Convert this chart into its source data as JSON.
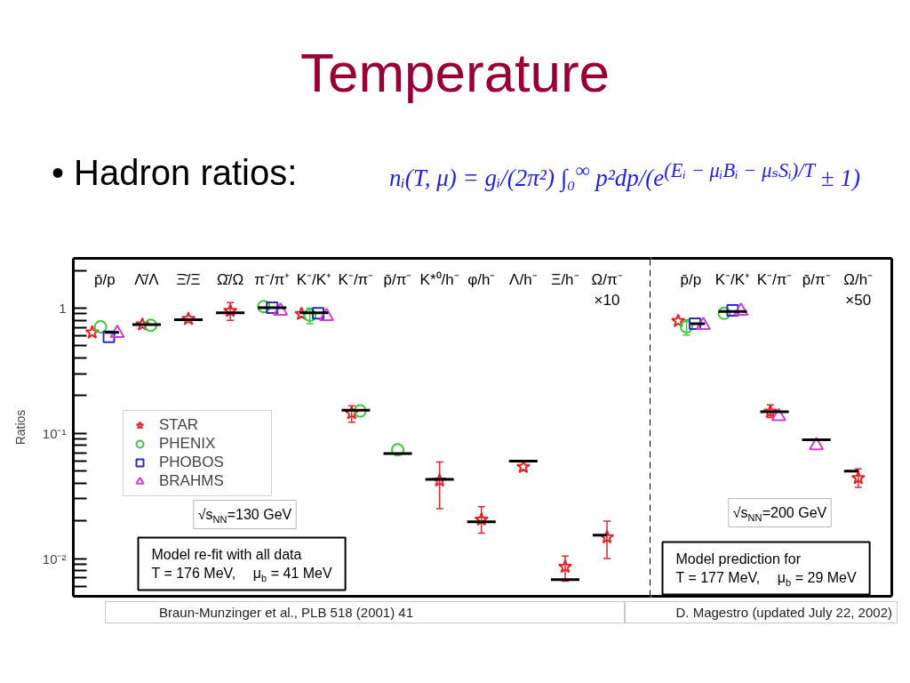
{
  "chart_data": [
    {
      "type": "scatter",
      "title": "Temperature",
      "subtitle": "• Hadron ratios:",
      "ylabel": "Ratios",
      "annotations": [
        "nᵢ(T, μ) = gᵢ/(2π²) ∫₀$^{∞}$ p²dp/(e$^{(Eᵢ − μᵢBᵢ − μₛSᵢ)/T}$ ± 1)",
        "√s$_{NN}$=130 GeV",
        "Model re-fit with all data\nT = 176 MeV,    μ$_{b}$ = 41 MeV",
        "Braun-Munzinger et al., PLB 518 (2001) 41"
      ],
      "categories": [
        "p̄/p",
        "Λ̄/Λ",
        "Ξ̄/Ξ",
        "Ω̄/Ω",
        "π⁻/π⁺",
        "K⁻/K⁺",
        "K⁻/π⁻",
        "p̄/π⁻",
        "K*⁰/h⁻",
        "φ/h⁻",
        "Λ/h⁻",
        "Ξ/h⁻",
        "Ω/π⁻\n×10"
      ],
      "series": [
        {
          "name": "STAR",
          "color": "#e3242b",
          "marker": "star",
          "values": [
            0.64,
            0.74,
            0.82,
            0.95,
            null,
            0.9,
            0.145,
            null,
            0.042,
            0.0205,
            0.054,
            0.0086,
            0.0148
          ],
          "errors": [
            null,
            null,
            null,
            [
              0.8,
              1.11
            ],
            null,
            null,
            [
              0.123,
              0.166
            ],
            null,
            [
              0.025,
              0.059
            ],
            [
              0.016,
              0.026
            ],
            null,
            [
              0.0066,
              0.0105
            ],
            [
              0.01,
              0.0199
            ]
          ]
        },
        {
          "name": "PHENIX",
          "color": "#3cc83c",
          "marker": "circle",
          "values": [
            0.71,
            0.73,
            null,
            null,
            1.03,
            0.88,
            0.151,
            0.074,
            null,
            null,
            null,
            null,
            null
          ],
          "errors": [
            null,
            null,
            null,
            null,
            null,
            [
              0.75,
              1.0
            ],
            null,
            null,
            null,
            null,
            null,
            null,
            null
          ]
        },
        {
          "name": "PHOBOS",
          "color": "#2a2ad0",
          "marker": "square",
          "values": [
            0.59,
            null,
            null,
            null,
            1.01,
            0.91,
            null,
            null,
            null,
            null,
            null,
            null,
            null
          ]
        },
        {
          "name": "BRAHMS",
          "color": "#d23cd2",
          "marker": "triangle",
          "values": [
            0.63,
            null,
            null,
            null,
            0.95,
            0.86,
            null,
            null,
            null,
            null,
            null,
            null,
            null
          ]
        },
        {
          "type": "step",
          "color": "#000000",
          "values": [
            0.64,
            0.74,
            0.81,
            0.92,
            1.01,
            0.92,
            0.153,
            0.069,
            0.043,
            0.0197,
            0.06,
            0.0068,
            0.0154
          ]
        }
      ],
      "ylim": [
        0.005,
        2.5
      ],
      "yticks": [
        {
          "value": 0.01,
          "label": "10⁻²"
        },
        {
          "value": 0.1,
          "label": "10⁻¹"
        },
        1
      ],
      "log": true,
      "legend": "left"
    },
    {
      "type": "scatter",
      "annotations": [
        "√s$_{NN}$=200 GeV",
        "Model prediction for\nT = 177 MeV,    μ$_{b}$ = 29 MeV",
        "D. Magestro (updated July 22, 2002)"
      ],
      "categories": [
        "p̄/p",
        "K⁻/K⁺",
        "K⁻/π⁻",
        "p̄/π⁻",
        "Ω/h⁻\n×50"
      ],
      "series": [
        {
          "color": "#e3242b",
          "marker": "star",
          "values": [
            0.79,
            null,
            0.149,
            null,
            0.044
          ],
          "errors": [
            null,
            null,
            [
              0.134,
              0.169
            ],
            null,
            [
              0.037,
              0.052
            ]
          ]
        },
        {
          "color": "#3cc83c",
          "marker": "circle",
          "values": [
            0.71,
            0.91,
            null,
            null,
            null
          ],
          "errors": [
            [
              0.61,
              0.81
            ],
            null,
            null,
            null,
            null
          ]
        },
        {
          "color": "#2a2ad0",
          "marker": "square",
          "values": [
            0.75,
            0.96,
            null,
            null,
            null
          ]
        },
        {
          "color": "#d23cd2",
          "marker": "triangle",
          "values": [
            0.73,
            0.95,
            0.137,
            0.08,
            null
          ]
        },
        {
          "type": "step",
          "color": "#000000",
          "values": [
            0.75,
            0.94,
            0.149,
            0.089,
            0.05
          ]
        }
      ],
      "ylim": [
        0.005,
        2.5
      ],
      "log": true,
      "tick_labels": "x"
    }
  ]
}
